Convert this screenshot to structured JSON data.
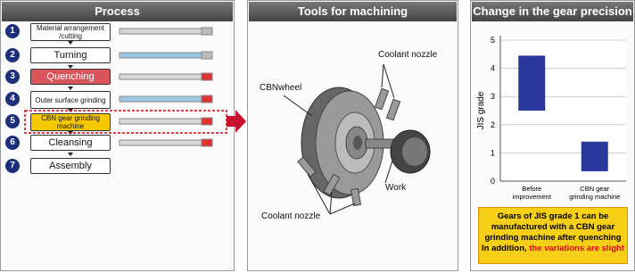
{
  "process": {
    "title": "Process",
    "steps": [
      {
        "number": "1",
        "label": "Material arrangement /cutting"
      },
      {
        "number": "2",
        "label": "Turning"
      },
      {
        "number": "3",
        "label": "Quenching"
      },
      {
        "number": "4",
        "label": "Outer surface grinding"
      },
      {
        "number": "5",
        "label": "CBN gear grinding machine"
      },
      {
        "number": "6",
        "label": "Cleansing"
      },
      {
        "number": "7",
        "label": "Assembly"
      }
    ]
  },
  "tools": {
    "title": "Tools for machining",
    "labels": [
      "Coolant nozzle",
      "CBNwheel",
      "Work",
      "Coolant nozzle"
    ]
  },
  "precision": {
    "title": "Change in the gear precision",
    "chart": {
      "type": "floating-bar",
      "y_label": "JIS grade",
      "categories": [
        "Before improvement",
        "CBN gear grinding machine"
      ],
      "series": [
        {
          "color": "#2a379b",
          "low": [
            2.5,
            0.35
          ],
          "high": [
            4.45,
            1.4
          ]
        }
      ],
      "ylim": [
        0,
        5
      ],
      "yticks": [
        0,
        1,
        2,
        3,
        4,
        5
      ],
      "grid": true
    },
    "note": {
      "text": "Gears of JIS grade 1 can be manufactured with a CBN gear grinding machine after quenching In addition,",
      "highlight": "the variations are slight"
    }
  }
}
